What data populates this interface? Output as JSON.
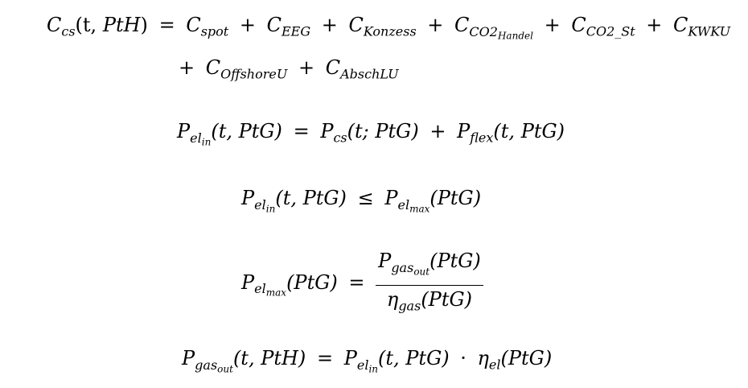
{
  "equations": {
    "eq1": {
      "C": "C",
      "cs": "cs",
      "args_t": "(t, ",
      "PtH": "PtH",
      "close": ")",
      "eq": "=",
      "plus": "+",
      "spot": "spot",
      "EEG": "EEG",
      "Konzess": "Konzess",
      "CO2": "CO2",
      "Handel": "Handel",
      "CO2_St": "CO2_St",
      "KWKU": "KWKU",
      "OffshoreU": "OffshoreU",
      "AbschLU": "AbschLU"
    },
    "eq2": {
      "P": "P",
      "el": "el",
      "in": "in",
      "args_t_ptg": "(t, PtG)",
      "eq": "=",
      "cs": "cs",
      "args_t_semi_ptg": "(t; PtG)",
      "plus": "+",
      "flex": "flex"
    },
    "eq3": {
      "P": "P",
      "el": "el",
      "in": "in",
      "args_t_ptg": "(t, PtG)",
      "leq": "≤",
      "max": "max",
      "args_ptg": "(PtG)"
    },
    "eq4": {
      "P": "P",
      "el": "el",
      "max": "max",
      "args_ptg": "(PtG)",
      "eq": "=",
      "gas": "gas",
      "out": "out",
      "eta": "η"
    },
    "eq5": {
      "P": "P",
      "gas": "gas",
      "out": "out",
      "args_t_pth": "(t, PtH)",
      "eq": "=",
      "el": "el",
      "in": "in",
      "args_t_ptg": "(t, PtG)",
      "dot": "·",
      "eta": "η",
      "args_ptg": "(PtG)"
    }
  }
}
